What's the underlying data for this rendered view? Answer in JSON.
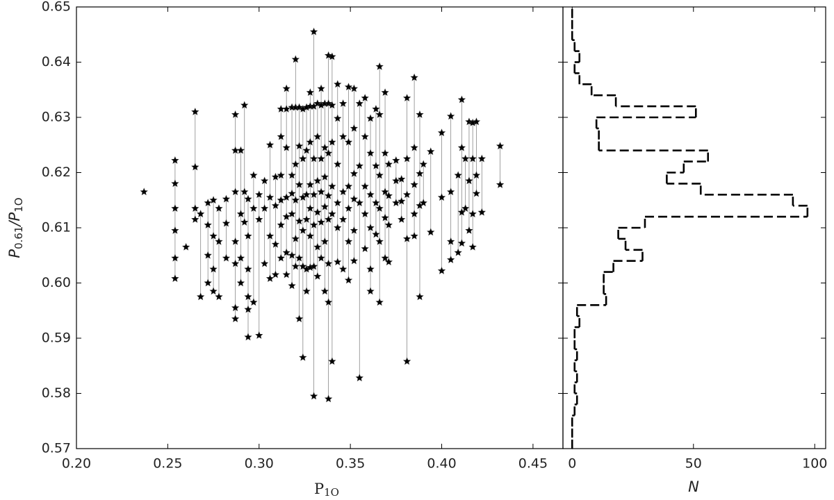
{
  "chart_data": [
    {
      "type": "scatter",
      "xlabel": {
        "text": "P",
        "sub": "1O"
      },
      "ylabel": {
        "num": "P",
        "num_sub": "0.61",
        "den": "/P",
        "den_sub": "1O"
      },
      "xlim": [
        0.2,
        0.4664
      ],
      "ylim": [
        0.57,
        0.65
      ],
      "xticks": [
        {
          "value": 0.2,
          "label": "0.20"
        },
        0.25,
        {
          "value": 0.3,
          "label": "0.30"
        },
        0.35,
        {
          "value": 0.4,
          "label": "0.40"
        },
        0.45
      ],
      "yticks": [
        0.57,
        0.58,
        0.59,
        {
          "value": 0.6,
          "label": "0.60"
        },
        0.61,
        0.62,
        0.63,
        0.64,
        0.65
      ],
      "color": "#000000",
      "line_color": "#888888",
      "x": [
        0.237,
        0.254,
        0.26,
        0.265,
        0.268,
        0.272,
        0.275,
        0.278,
        0.282,
        0.287,
        0.29,
        0.292,
        0.294,
        0.297,
        0.3,
        0.303,
        0.306,
        0.309,
        0.312,
        0.315,
        0.318,
        0.32,
        0.322,
        0.324,
        0.326,
        0.328,
        0.33,
        0.332,
        0.334,
        0.336,
        0.338,
        0.34,
        0.343,
        0.346,
        0.349,
        0.352,
        0.355,
        0.358,
        0.361,
        0.364,
        0.366,
        0.369,
        0.371,
        0.375,
        0.378,
        0.381,
        0.385,
        0.388,
        0.39,
        0.394,
        0.4,
        0.405,
        0.409,
        0.411,
        0.413,
        0.415,
        0.417,
        0.419,
        0.422,
        0.432
      ],
      "y": [
        [
          0.6165
        ],
        [
          0.6222,
          0.618,
          0.6135,
          0.6095,
          0.6045,
          0.6008
        ],
        [
          0.6065
        ],
        [
          0.631,
          0.621,
          0.6135,
          0.6115
        ],
        [
          0.6125,
          0.5975
        ],
        [
          0.6145,
          0.6105,
          0.605,
          0.6
        ],
        [
          0.615,
          0.6085,
          0.6025,
          0.5985
        ],
        [
          0.6135,
          0.6075,
          0.5975
        ],
        [
          0.6152,
          0.6108,
          0.6045
        ],
        [
          0.6305,
          0.624,
          0.6165,
          0.6075,
          0.6035,
          0.5955,
          0.5935
        ],
        [
          0.624,
          0.6125,
          0.6045,
          0.6
        ],
        [
          0.6322,
          0.6165,
          0.611
        ],
        [
          0.6152,
          0.6085,
          0.6025,
          0.5975,
          0.5952,
          0.5902
        ],
        [
          0.6195,
          0.6135,
          0.5965
        ],
        [
          0.616,
          0.6115,
          0.5905
        ],
        [
          0.6185,
          0.6135,
          0.6035
        ],
        [
          0.625,
          0.6155,
          0.6085,
          0.6008
        ],
        [
          0.6192,
          0.614,
          0.607,
          0.6015
        ],
        [
          0.6315,
          0.6265,
          0.6195,
          0.615,
          0.6105,
          0.6045
        ],
        [
          0.6352,
          0.6315,
          0.6245,
          0.6155,
          0.612,
          0.6055,
          0.6015
        ],
        [
          0.6318,
          0.6195,
          0.6162,
          0.6125,
          0.605,
          0.5995
        ],
        [
          0.6405,
          0.6318,
          0.6215,
          0.615,
          0.608,
          0.603
        ],
        [
          0.6318,
          0.6248,
          0.6178,
          0.6112,
          0.6045,
          0.5935
        ],
        [
          0.6315,
          0.6225,
          0.6155,
          0.6095,
          0.603,
          0.5865
        ],
        [
          0.6318,
          0.624,
          0.616,
          0.6115,
          0.6025,
          0.5985
        ],
        [
          0.6345,
          0.632,
          0.6255,
          0.6178,
          0.6135,
          0.6085,
          0.6028
        ],
        [
          0.6455,
          0.632,
          0.6225,
          0.616,
          0.6105,
          0.603,
          0.5795
        ],
        [
          0.6325,
          0.6265,
          0.6185,
          0.6128,
          0.6065,
          0.6012
        ],
        [
          0.6352,
          0.6322,
          0.6225,
          0.6165,
          0.611,
          0.6045
        ],
        [
          0.6325,
          0.6245,
          0.6192,
          0.6138,
          0.6075,
          0.5985
        ],
        [
          0.6412,
          0.6325,
          0.6235,
          0.6158,
          0.6115,
          0.6035,
          0.5965,
          0.579
        ],
        [
          0.641,
          0.6322,
          0.6255,
          0.6175,
          0.6125,
          0.5858
        ],
        [
          0.636,
          0.6298,
          0.6215,
          0.6145,
          0.61,
          0.6038
        ],
        [
          0.6325,
          0.6265,
          0.6165,
          0.6115,
          0.6025
        ],
        [
          0.6355,
          0.6255,
          0.6175,
          0.6135,
          0.6075,
          0.6005
        ],
        [
          0.6352,
          0.628,
          0.6198,
          0.6152,
          0.6095,
          0.604
        ],
        [
          0.6325,
          0.6212,
          0.6145,
          0.5828
        ],
        [
          0.6335,
          0.6265,
          0.6175,
          0.6125,
          0.6062
        ],
        [
          0.6298,
          0.6235,
          0.616,
          0.61,
          0.6025,
          0.5985
        ],
        [
          0.6315,
          0.6212,
          0.6145,
          0.6088
        ],
        [
          0.6392,
          0.6305,
          0.6195,
          0.6135,
          0.6075,
          0.5965
        ],
        [
          0.6345,
          0.6235,
          0.6165,
          0.6118,
          0.6045
        ],
        [
          0.6215,
          0.6158,
          0.6105,
          0.6038
        ],
        [
          0.6222,
          0.6185,
          0.6145
        ],
        [
          0.6188,
          0.6148,
          0.6115
        ],
        [
          0.6335,
          0.6225,
          0.616,
          0.608,
          0.5858
        ],
        [
          0.6372,
          0.6245,
          0.6178,
          0.6125,
          0.6085
        ],
        [
          0.6305,
          0.6198,
          0.614,
          0.5975
        ],
        [
          0.6215,
          0.6145
        ],
        [
          0.6238,
          0.6092
        ],
        [
          0.6272,
          0.6155,
          0.6022
        ],
        [
          0.6302,
          0.6165,
          0.6075,
          0.6042
        ],
        [
          0.6195,
          0.6055
        ],
        [
          0.6332,
          0.6245,
          0.6128,
          0.6072
        ],
        [
          0.6225,
          0.6135
        ],
        [
          0.6292,
          0.6185,
          0.6095
        ],
        [
          0.629,
          0.6225,
          0.6125,
          0.6065
        ],
        [
          0.6292,
          0.6195,
          0.6162
        ],
        [
          0.6225,
          0.6128
        ],
        [
          0.6248,
          0.6178
        ]
      ]
    },
    {
      "type": "histogram",
      "orientation": "horizontal",
      "xlabel": "N",
      "xlim": [
        -3.8,
        104.5
      ],
      "ylim": [
        0.57,
        0.65
      ],
      "xticks": [
        0,
        50,
        100
      ],
      "yticks": [
        0.57,
        0.58,
        0.59,
        0.6,
        0.61,
        0.62,
        0.63,
        0.64,
        0.65
      ],
      "color": "#000000",
      "bins": [
        0.57,
        0.572,
        0.574,
        0.576,
        0.578,
        0.58,
        0.582,
        0.584,
        0.586,
        0.588,
        0.59,
        0.592,
        0.594,
        0.596,
        0.598,
        0.6,
        0.602,
        0.604,
        0.606,
        0.608,
        0.61,
        0.612,
        0.614,
        0.616,
        0.618,
        0.62,
        0.622,
        0.624,
        0.626,
        0.628,
        0.63,
        0.632,
        0.634,
        0.636,
        0.638,
        0.64,
        0.642,
        0.644,
        0.646,
        0.648,
        0.65
      ],
      "counts": [
        0,
        0,
        0,
        1,
        2,
        1,
        2,
        1,
        2,
        1,
        1,
        3,
        2,
        14,
        13,
        13,
        17,
        29,
        22,
        19,
        30,
        97,
        91,
        53,
        39,
        46,
        56,
        11,
        11,
        10,
        51,
        18,
        8,
        3,
        1,
        3,
        1,
        0,
        0,
        0
      ]
    }
  ]
}
